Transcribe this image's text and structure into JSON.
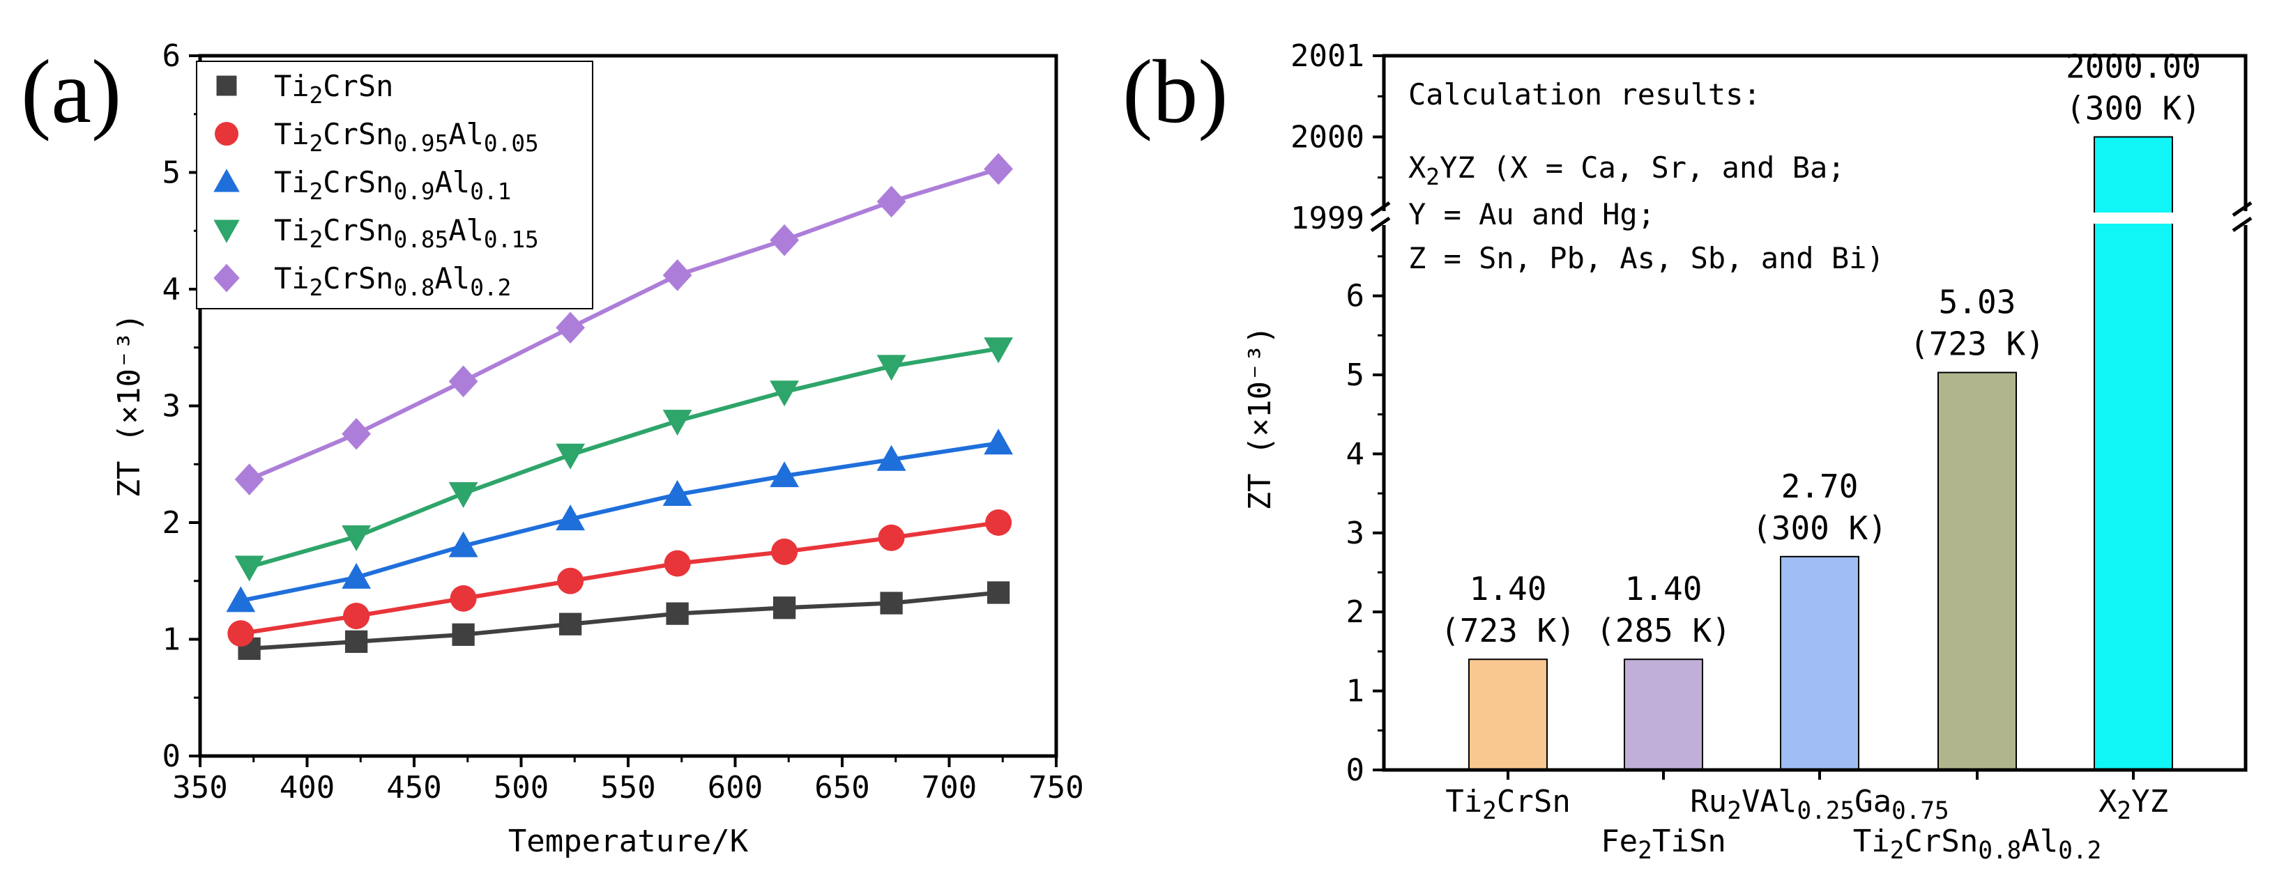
{
  "chart_data": [
    {
      "type": "line",
      "panel_label": "(a)",
      "xlabel": "Temperature/K",
      "ylabel": "ZT (×10⁻³)",
      "xlim": [
        350,
        750
      ],
      "ylim": [
        0,
        6
      ],
      "xticks": [
        350,
        400,
        450,
        500,
        550,
        600,
        650,
        700,
        750
      ],
      "yticks": [
        0,
        1,
        2,
        3,
        4,
        5,
        6
      ],
      "legend_position": "top-left",
      "x": [
        373,
        423,
        473,
        523,
        573,
        623,
        673,
        723
      ],
      "series": [
        {
          "name": "Ti2CrSn",
          "label_parts": [
            [
              "Ti",
              0
            ],
            [
              "2",
              1
            ],
            [
              "CrSn",
              0
            ]
          ],
          "marker": "square",
          "color": "#404040",
          "x": [
            373,
            423,
            473,
            523,
            573,
            623,
            673,
            723
          ],
          "values": [
            0.92,
            0.98,
            1.04,
            1.13,
            1.22,
            1.27,
            1.31,
            1.4
          ]
        },
        {
          "name": "Ti2CrSn0.95Al0.05",
          "label_parts": [
            [
              "Ti",
              0
            ],
            [
              "2",
              1
            ],
            [
              "CrSn",
              0
            ],
            [
              "0.95",
              1
            ],
            [
              "Al",
              0
            ],
            [
              "0.05",
              1
            ]
          ],
          "marker": "circle",
          "color": "#e8353a",
          "x": [
            369,
            423,
            473,
            523,
            573,
            623,
            673,
            723
          ],
          "values": [
            1.05,
            1.2,
            1.35,
            1.5,
            1.65,
            1.75,
            1.87,
            2.0
          ]
        },
        {
          "name": "Ti2CrSn0.9Al0.1",
          "label_parts": [
            [
              "Ti",
              0
            ],
            [
              "2",
              1
            ],
            [
              "CrSn",
              0
            ],
            [
              "0.9",
              1
            ],
            [
              "Al",
              0
            ],
            [
              "0.1",
              1
            ]
          ],
          "marker": "triangle-up",
          "color": "#1f6fdb",
          "x": [
            369,
            423,
            473,
            523,
            573,
            623,
            673,
            723
          ],
          "values": [
            1.33,
            1.53,
            1.8,
            2.03,
            2.24,
            2.4,
            2.54,
            2.68
          ]
        },
        {
          "name": "Ti2CrSn0.85Al0.15",
          "label_parts": [
            [
              "Ti",
              0
            ],
            [
              "2",
              1
            ],
            [
              "CrSn",
              0
            ],
            [
              "0.85",
              1
            ],
            [
              "Al",
              0
            ],
            [
              "0.15",
              1
            ]
          ],
          "marker": "triangle-down",
          "color": "#2ea56a",
          "x": [
            373,
            423,
            473,
            523,
            573,
            623,
            673,
            723
          ],
          "values": [
            1.62,
            1.88,
            2.25,
            2.58,
            2.87,
            3.12,
            3.34,
            3.49
          ]
        },
        {
          "name": "Ti2CrSn0.8Al0.2",
          "label_parts": [
            [
              "Ti",
              0
            ],
            [
              "2",
              1
            ],
            [
              "CrSn",
              0
            ],
            [
              "0.8",
              1
            ],
            [
              "Al",
              0
            ],
            [
              "0.2",
              1
            ]
          ],
          "marker": "diamond",
          "color": "#ad7ed9",
          "x": [
            373,
            423,
            473,
            523,
            573,
            623,
            673,
            723
          ],
          "values": [
            2.37,
            2.76,
            3.21,
            3.67,
            4.12,
            4.42,
            4.75,
            5.03
          ]
        }
      ]
    },
    {
      "type": "bar",
      "panel_label": "(b)",
      "ylabel": "ZT (×10⁻³)",
      "ylim_lower": [
        0,
        7
      ],
      "ylim_upper": [
        1999,
        2001
      ],
      "yticks_lower": [
        0,
        1,
        2,
        3,
        4,
        5,
        6
      ],
      "yticks_upper": [
        1999,
        2000,
        2001
      ],
      "axis_break": true,
      "categories": [
        "Ti2CrSn",
        "Fe2TiSn",
        "Ru2VAl0.25Ga0.75",
        "Ti2CrSn0.8Al0.2",
        "X2YZ"
      ],
      "category_label_parts": [
        [
          [
            "Ti",
            0
          ],
          [
            "2",
            1
          ],
          [
            "CrSn",
            0
          ]
        ],
        [
          [
            "Fe",
            0
          ],
          [
            "2",
            1
          ],
          [
            "TiSn",
            0
          ]
        ],
        [
          [
            "Ru",
            0
          ],
          [
            "2",
            1
          ],
          [
            "VAl",
            0
          ],
          [
            "0.25",
            1
          ],
          [
            "Ga",
            0
          ],
          [
            "0.75",
            1
          ]
        ],
        [
          [
            "Ti",
            0
          ],
          [
            "2",
            1
          ],
          [
            "CrSn",
            0
          ],
          [
            "0.8",
            1
          ],
          [
            "Al",
            0
          ],
          [
            "0.2",
            1
          ]
        ],
        [
          [
            "X",
            0
          ],
          [
            "2",
            1
          ],
          [
            "YZ",
            0
          ]
        ]
      ],
      "values": [
        1.4,
        1.4,
        2.7,
        5.03,
        2000.0
      ],
      "value_labels": [
        "1.40",
        "1.40",
        "2.70",
        "5.03",
        "2000.00"
      ],
      "temperature_labels": [
        "(723 K)",
        "(285 K)",
        "(300 K)",
        "(723 K)",
        "(300 K)"
      ],
      "colors": [
        "#f9c890",
        "#c0b0d8",
        "#9fbdf3",
        "#b0b58d",
        "#10f5f5"
      ],
      "annotation": {
        "title": "Calculation results:",
        "line1_parts": [
          [
            "X",
            0
          ],
          [
            "2",
            1
          ],
          [
            "YZ (X = Ca, Sr, and Ba;",
            0
          ]
        ],
        "line2": "Y = Au and Hg;",
        "line3": "Z = Sn, Pb, As, Sb, and Bi)"
      }
    }
  ]
}
